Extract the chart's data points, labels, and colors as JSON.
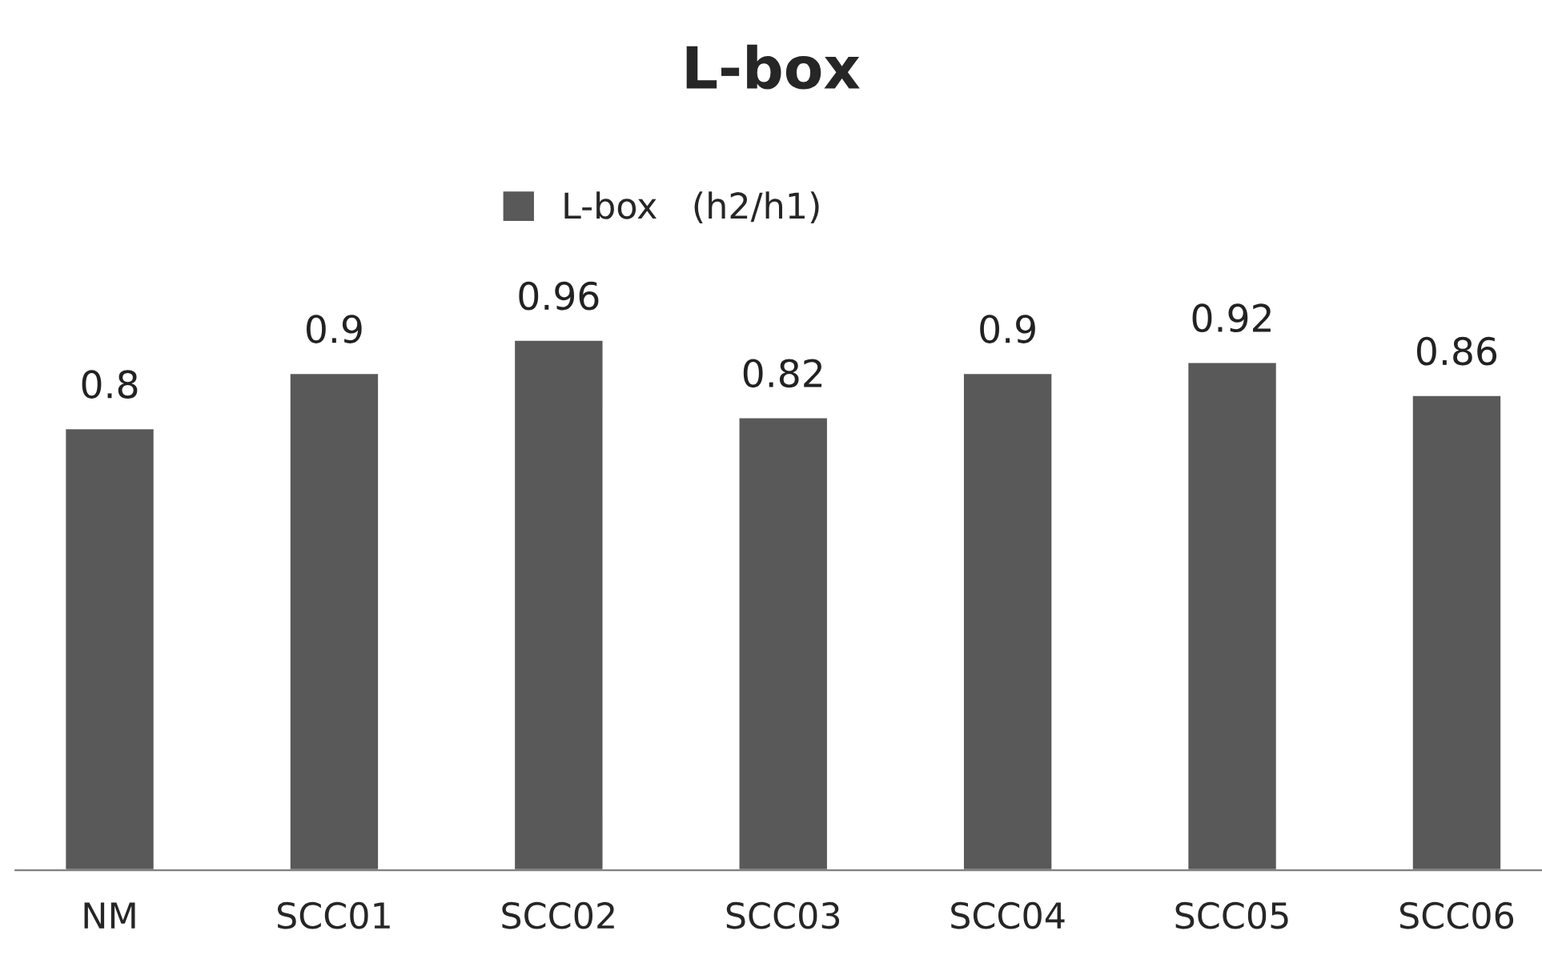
{
  "chart_data": {
    "type": "bar",
    "title": "L-box",
    "categories": [
      "NM",
      "SCC01",
      "SCC02",
      "SCC03",
      "SCC04",
      "SCC05",
      "SCC06"
    ],
    "series": [
      {
        "name": "L-box   (h2/h1)",
        "color": "#595959",
        "values": [
          0.8,
          0.9,
          0.96,
          0.82,
          0.9,
          0.92,
          0.86
        ]
      }
    ],
    "data_labels": true,
    "legend": "top",
    "tick_labels": "x",
    "grid": false
  }
}
